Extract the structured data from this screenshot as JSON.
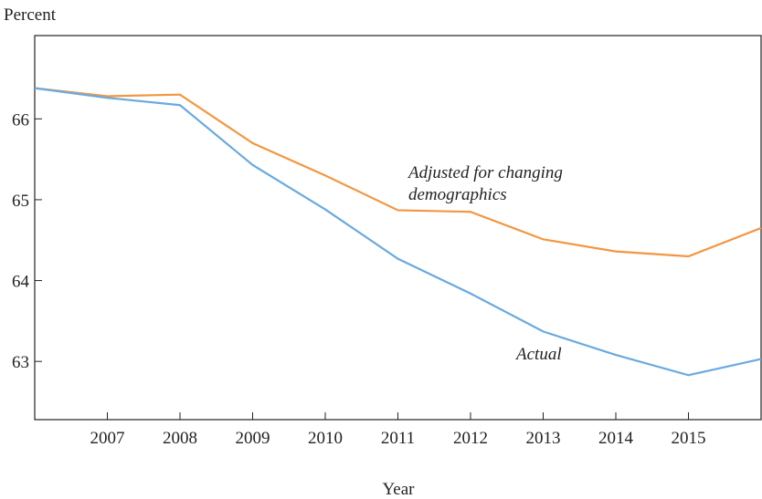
{
  "chart_data": {
    "type": "line",
    "y_label": "Percent",
    "x_label": "Year",
    "x": [
      2006,
      2007,
      2008,
      2009,
      2010,
      2011,
      2012,
      2013,
      2014,
      2015,
      2016
    ],
    "series": [
      {
        "name": "Adjusted for changing demographics",
        "color": "#f39640",
        "values": [
          66.38,
          66.28,
          66.3,
          65.7,
          65.3,
          64.87,
          64.85,
          64.51,
          64.36,
          64.3,
          64.65
        ]
      },
      {
        "name": "Actual",
        "color": "#6aaade",
        "values": [
          66.38,
          66.26,
          66.17,
          65.43,
          64.88,
          64.27,
          63.84,
          63.37,
          63.08,
          62.83,
          63.03
        ]
      }
    ],
    "xlim": [
      2006,
      2016
    ],
    "xticks": [
      2007,
      2008,
      2009,
      2010,
      2011,
      2012,
      2013,
      2014,
      2015
    ],
    "ylim": [
      62.28,
      67.03
    ],
    "yticks": [
      63,
      64,
      65,
      66
    ]
  }
}
